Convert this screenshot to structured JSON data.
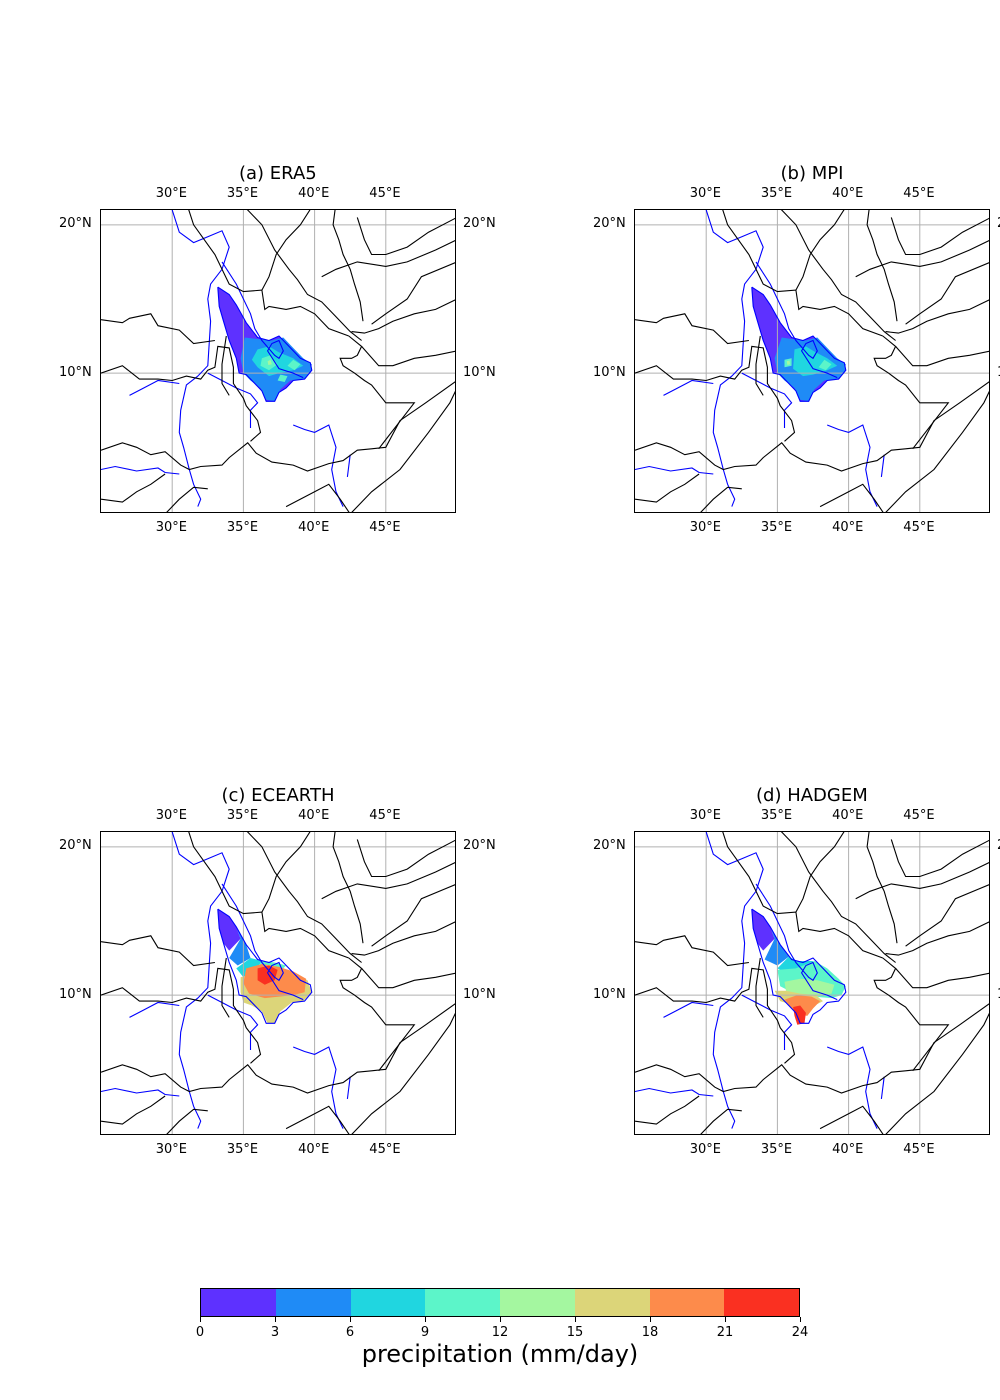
{
  "panels": [
    {
      "title": "(a) ERA5",
      "scenario": "era5"
    },
    {
      "title": "(b) MPI",
      "scenario": "mpi"
    },
    {
      "title": "(c) ECEARTH",
      "scenario": "ecearth"
    },
    {
      "title": "(d) HADGEM",
      "scenario": "hadgem"
    }
  ],
  "axes": {
    "lon_ticks": [
      "30°E",
      "35°E",
      "40°E",
      "45°E"
    ],
    "lat_ticks": [
      "20°N",
      "10°N"
    ],
    "lon_range": [
      25,
      50
    ],
    "lat_range": [
      0.5,
      21
    ]
  },
  "colorbar": {
    "label": "precipitation (mm/day)",
    "ticks": [
      "0",
      "3",
      "6",
      "9",
      "12",
      "15",
      "18",
      "21",
      "24"
    ],
    "colors": [
      "#5e31ff",
      "#1f8bf6",
      "#20d6e0",
      "#5cf5c9",
      "#a4f7a0",
      "#dcd579",
      "#fd8b4b",
      "#fa3021"
    ]
  },
  "map_colors": {
    "coastline": "#000000",
    "rivers": "#0000ff",
    "grid": "#b0b0b0"
  }
}
